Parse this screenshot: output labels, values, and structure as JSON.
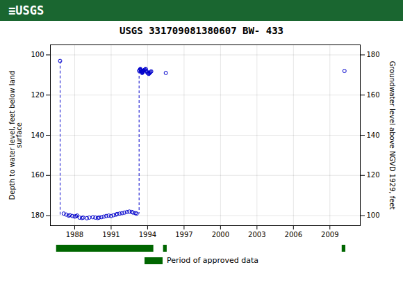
{
  "chart_data": {
    "type": "scatter",
    "title": "USGS 331709081380607 BW- 433",
    "annotations": [
      {
        "text": "≡USGS",
        "color": "#1a6630"
      }
    ],
    "ylabel": "Depth to water level, feet below land\nsurface",
    "y2label": "Groundwater level above NGVD 1929, feet",
    "xlim": [
      1986.0,
      2011.5
    ],
    "xticks": [
      1988,
      1991,
      1994,
      1997,
      2000,
      2003,
      2006,
      2009
    ],
    "ylim": [
      185,
      95
    ],
    "yticks": [
      100,
      120,
      140,
      160,
      180
    ],
    "y2lim": [
      95,
      185
    ],
    "y2ticks": [
      100,
      120,
      140,
      160,
      180
    ],
    "grid": true,
    "legend": "bottom",
    "series": [
      {
        "type": "scatter",
        "marker": "circle",
        "color": "#0000cc",
        "x": [
          1986.8,
          1987.1,
          1987.3,
          1987.5,
          1987.6,
          1987.8,
          1988.0,
          1988.1,
          1988.2,
          1988.4,
          1988.6,
          1988.7,
          1989.0,
          1989.2,
          1989.5,
          1989.7,
          1989.9,
          1990.0,
          1990.2,
          1990.4,
          1990.6,
          1990.8,
          1991.0,
          1991.2,
          1991.4,
          1991.5,
          1991.7,
          1991.9,
          1992.1,
          1992.3,
          1992.5,
          1992.7,
          1992.8,
          1993.0,
          1993.1,
          1993.3,
          1993.35,
          1993.4,
          1993.42,
          1993.45,
          1993.47,
          1993.5,
          1993.52,
          1993.55,
          1993.57,
          1993.6,
          1993.62,
          1993.65,
          1993.7,
          1993.75,
          1993.8,
          1993.85,
          1993.9,
          1993.95,
          1994.0,
          1994.05,
          1994.1,
          1994.15,
          1994.2,
          1994.25,
          1994.3,
          1995.5,
          2010.2
        ],
        "values": [
          103,
          179,
          179.5,
          180,
          179.8,
          180.2,
          180.5,
          180.3,
          180.0,
          181,
          181.2,
          181,
          181.3,
          181,
          180.8,
          181,
          181.2,
          181,
          180.8,
          180.5,
          180.2,
          180,
          180.2,
          179.8,
          179.5,
          179.2,
          179,
          178.8,
          178.5,
          178.2,
          178,
          178.2,
          178.5,
          178.8,
          179,
          108,
          107.5,
          107,
          107.2,
          107.5,
          108,
          108.2,
          108.5,
          109,
          108.8,
          108.5,
          108.2,
          108,
          107.8,
          107.5,
          107.2,
          107,
          108,
          108.5,
          109,
          109.2,
          109.5,
          109,
          108.8,
          108.5,
          108.2,
          109,
          108
        ]
      },
      {
        "type": "line",
        "line_style": "dashed",
        "color": "#0000cc",
        "segments": [
          [
            [
              1986.8,
              103
            ],
            [
              1986.8,
              180
            ]
          ],
          [
            [
              1993.3,
              108
            ],
            [
              1993.3,
              179
            ]
          ]
        ]
      },
      {
        "type": "bar",
        "orientation": "horizontal",
        "name": "Period of approved data",
        "color": "#006600",
        "periods": [
          [
            1986.5,
            1994.5
          ],
          [
            1995.3,
            1995.6
          ],
          [
            2010.0,
            2010.3
          ]
        ]
      }
    ]
  }
}
